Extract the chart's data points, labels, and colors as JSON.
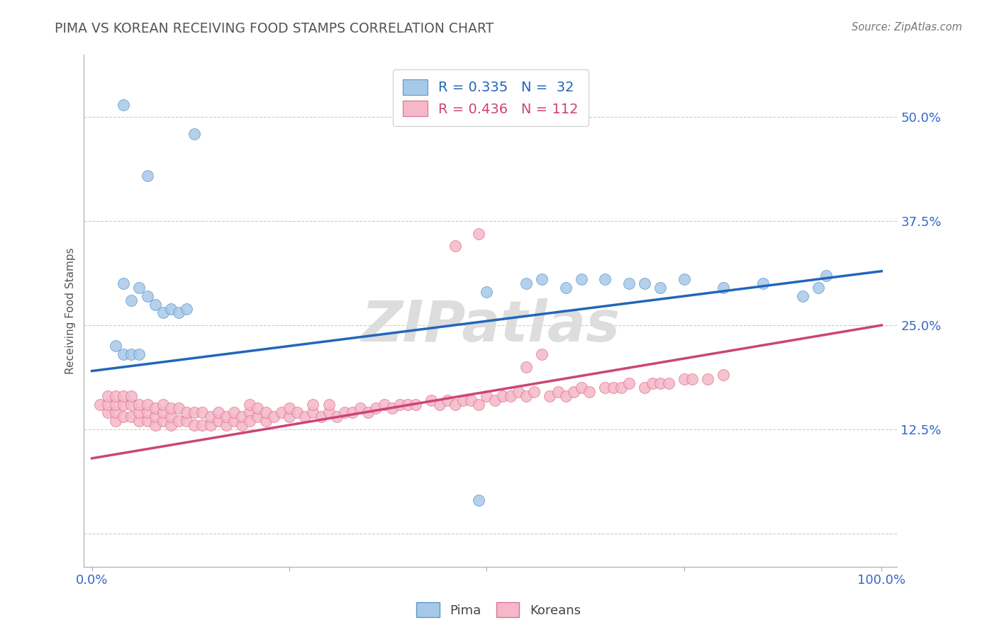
{
  "title": "PIMA VS KOREAN RECEIVING FOOD STAMPS CORRELATION CHART",
  "source": "Source: ZipAtlas.com",
  "ylabel": "Receiving Food Stamps",
  "pima_R": 0.335,
  "pima_N": 32,
  "korean_R": 0.436,
  "korean_N": 112,
  "blue_fill": "#a8c8e8",
  "blue_edge": "#5599cc",
  "pink_fill": "#f5b8c8",
  "pink_edge": "#e07090",
  "blue_line": "#2266bb",
  "pink_line": "#cc4477",
  "title_color": "#555555",
  "source_color": "#777777",
  "axis_label_color": "#3366cc",
  "ytick_color": "#3366cc",
  "xtick_color": "#3366cc",
  "grid_color": "#cccccc",
  "watermark_color": "#dddddd",
  "legend_edge": "#cccccc",
  "pima_x": [
    0.04,
    0.07,
    0.13,
    0.04,
    0.05,
    0.06,
    0.07,
    0.08,
    0.09,
    0.1,
    0.11,
    0.12,
    0.03,
    0.04,
    0.05,
    0.06,
    0.5,
    0.55,
    0.57,
    0.6,
    0.62,
    0.65,
    0.68,
    0.7,
    0.72,
    0.75,
    0.8,
    0.85,
    0.9,
    0.92,
    0.93,
    0.49
  ],
  "pima_y": [
    0.515,
    0.43,
    0.48,
    0.3,
    0.28,
    0.295,
    0.285,
    0.275,
    0.265,
    0.27,
    0.265,
    0.27,
    0.225,
    0.215,
    0.215,
    0.215,
    0.29,
    0.3,
    0.305,
    0.295,
    0.305,
    0.305,
    0.3,
    0.3,
    0.295,
    0.305,
    0.295,
    0.3,
    0.285,
    0.295,
    0.31,
    0.04
  ],
  "korean_x": [
    0.01,
    0.02,
    0.02,
    0.02,
    0.03,
    0.03,
    0.03,
    0.03,
    0.04,
    0.04,
    0.04,
    0.05,
    0.05,
    0.05,
    0.06,
    0.06,
    0.06,
    0.07,
    0.07,
    0.07,
    0.08,
    0.08,
    0.08,
    0.09,
    0.09,
    0.09,
    0.1,
    0.1,
    0.1,
    0.11,
    0.11,
    0.12,
    0.12,
    0.13,
    0.13,
    0.14,
    0.14,
    0.15,
    0.15,
    0.16,
    0.16,
    0.17,
    0.17,
    0.18,
    0.18,
    0.19,
    0.19,
    0.2,
    0.2,
    0.2,
    0.21,
    0.21,
    0.22,
    0.22,
    0.23,
    0.24,
    0.25,
    0.25,
    0.26,
    0.27,
    0.28,
    0.28,
    0.29,
    0.3,
    0.3,
    0.31,
    0.32,
    0.33,
    0.34,
    0.35,
    0.36,
    0.37,
    0.38,
    0.39,
    0.4,
    0.41,
    0.43,
    0.44,
    0.45,
    0.46,
    0.47,
    0.48,
    0.49,
    0.5,
    0.51,
    0.52,
    0.53,
    0.54,
    0.55,
    0.56,
    0.58,
    0.59,
    0.6,
    0.61,
    0.62,
    0.63,
    0.65,
    0.66,
    0.67,
    0.68,
    0.7,
    0.71,
    0.72,
    0.73,
    0.75,
    0.76,
    0.78,
    0.8,
    0.46,
    0.49,
    0.55,
    0.57
  ],
  "korean_y": [
    0.155,
    0.145,
    0.155,
    0.165,
    0.135,
    0.145,
    0.155,
    0.165,
    0.14,
    0.155,
    0.165,
    0.14,
    0.155,
    0.165,
    0.135,
    0.145,
    0.155,
    0.135,
    0.145,
    0.155,
    0.13,
    0.14,
    0.15,
    0.135,
    0.145,
    0.155,
    0.13,
    0.14,
    0.15,
    0.135,
    0.15,
    0.135,
    0.145,
    0.13,
    0.145,
    0.13,
    0.145,
    0.13,
    0.14,
    0.135,
    0.145,
    0.13,
    0.14,
    0.135,
    0.145,
    0.13,
    0.14,
    0.145,
    0.135,
    0.155,
    0.14,
    0.15,
    0.135,
    0.145,
    0.14,
    0.145,
    0.14,
    0.15,
    0.145,
    0.14,
    0.145,
    0.155,
    0.14,
    0.145,
    0.155,
    0.14,
    0.145,
    0.145,
    0.15,
    0.145,
    0.15,
    0.155,
    0.15,
    0.155,
    0.155,
    0.155,
    0.16,
    0.155,
    0.16,
    0.155,
    0.16,
    0.16,
    0.155,
    0.165,
    0.16,
    0.165,
    0.165,
    0.17,
    0.165,
    0.17,
    0.165,
    0.17,
    0.165,
    0.17,
    0.175,
    0.17,
    0.175,
    0.175,
    0.175,
    0.18,
    0.175,
    0.18,
    0.18,
    0.18,
    0.185,
    0.185,
    0.185,
    0.19,
    0.345,
    0.36,
    0.2,
    0.215
  ],
  "blue_line_x": [
    0.0,
    1.0
  ],
  "blue_line_y": [
    0.195,
    0.315
  ],
  "pink_line_x": [
    0.0,
    1.0
  ],
  "pink_line_y": [
    0.09,
    0.25
  ],
  "xlim": [
    -0.01,
    1.02
  ],
  "ylim": [
    -0.04,
    0.575
  ],
  "yticks": [
    0.0,
    0.125,
    0.25,
    0.375,
    0.5
  ],
  "ytick_labels": [
    "",
    "12.5%",
    "25.0%",
    "37.5%",
    "50.0%"
  ],
  "xticks": [
    0.0,
    0.25,
    0.5,
    0.75,
    1.0
  ],
  "xtick_labels": [
    "0.0%",
    "",
    "",
    "",
    "100.0%"
  ]
}
